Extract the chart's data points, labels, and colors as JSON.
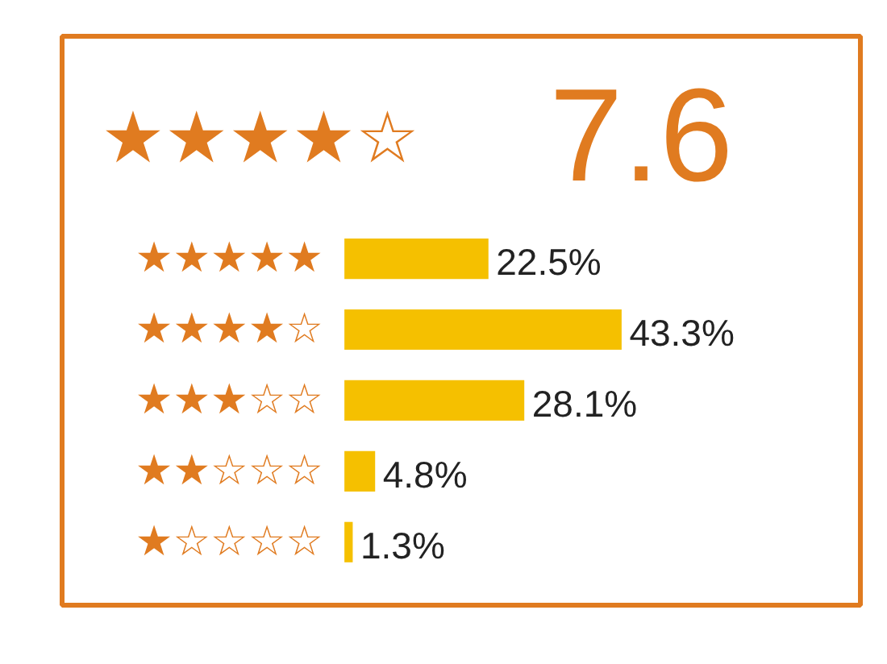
{
  "chart_data": {
    "type": "bar",
    "orientation": "horizontal",
    "title": "7.6",
    "annotations": [
      "★★★★☆"
    ],
    "categories": [
      "★★★★★",
      "★★★★☆",
      "★★★☆☆",
      "★★☆☆☆",
      "★☆☆☆☆"
    ],
    "series": [
      {
        "color": "#f5c000",
        "values": [
          22.5,
          43.3,
          28.1,
          4.8,
          1.3
        ],
        "value_labels": [
          "22.5%",
          "43.3%",
          "28.1%",
          "4.8%",
          "1.3%"
        ]
      }
    ],
    "grid": false,
    "tick_labels": "y"
  }
}
